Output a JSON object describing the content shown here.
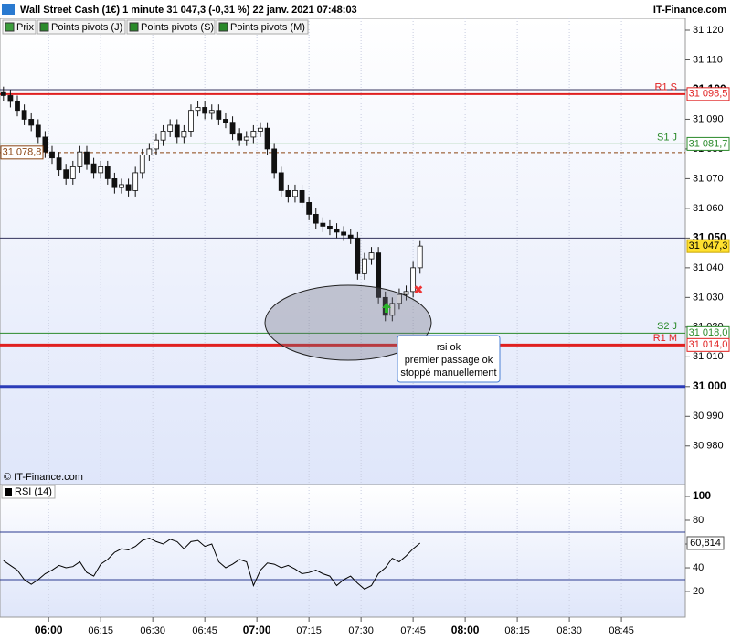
{
  "header": {
    "title": "Wall Street Cash (1€) 1 minute 31 047,3 (-0,31 %) 22 janv. 2021 07:48:03",
    "site": "IT-Finance.com"
  },
  "toolbar": [
    "Prix",
    "Points pivots (J)",
    "Points pivots (S)",
    "Points pivots (M)"
  ],
  "watermark": "© IT-Finance.com",
  "chart_data": [
    {
      "type": "candlestick",
      "x": [
        347,
        349,
        351,
        353,
        355,
        357,
        359,
        361,
        363,
        365,
        367,
        369,
        371,
        373,
        375,
        377,
        379,
        381,
        383,
        385,
        387,
        389,
        391,
        393,
        395,
        397,
        399,
        401,
        403,
        405,
        407,
        409,
        411,
        413,
        415,
        417,
        419,
        421,
        423,
        425,
        427,
        429,
        431,
        433,
        435,
        437,
        439,
        441,
        443,
        445,
        447,
        449,
        451,
        453,
        455,
        457,
        459,
        461,
        463,
        465,
        467
      ],
      "open": [
        31099,
        31098,
        31096,
        31093,
        31090,
        31088,
        31084,
        31079,
        31077,
        31073,
        31070,
        31074,
        31079,
        31075,
        31072,
        31074,
        31070,
        31067,
        31068,
        31066,
        31072,
        31078,
        31080,
        31083,
        31086,
        31088,
        31084,
        31086,
        31093,
        31094,
        31092,
        31093,
        31090,
        31089,
        31085,
        31083,
        31084,
        31086,
        31087,
        31080,
        31072,
        31066,
        31064,
        31066,
        31062,
        31058,
        31055,
        31054,
        31053,
        31052,
        31051,
        31050,
        31038,
        31043,
        31045,
        31030,
        31024,
        31028,
        31031,
        31032,
        31040
      ],
      "high": [
        31101,
        31100,
        31098,
        31095,
        31092,
        31090,
        31086,
        31081,
        31079,
        31075,
        31076,
        31081,
        31081,
        31077,
        31076,
        31076,
        31072,
        31070,
        31070,
        31074,
        31080,
        31082,
        31085,
        31088,
        31090,
        31090,
        31088,
        31095,
        31096,
        31096,
        31095,
        31095,
        31092,
        31091,
        31087,
        31086,
        31088,
        31089,
        31089,
        31082,
        31074,
        31068,
        31068,
        31068,
        31064,
        31060,
        31057,
        31056,
        31055,
        31054,
        31053,
        31052,
        31045,
        31047,
        31047,
        31032,
        31030,
        31033,
        31034,
        31042,
        31049
      ],
      "low": [
        31096,
        31094,
        31091,
        31088,
        31086,
        31082,
        31077,
        31075,
        31071,
        31068,
        31068,
        31072,
        31073,
        31070,
        31070,
        31068,
        31065,
        31065,
        31064,
        31064,
        31070,
        31076,
        31078,
        31081,
        31084,
        31082,
        31082,
        31084,
        31091,
        31090,
        31090,
        31088,
        31087,
        31083,
        31081,
        31081,
        31082,
        31084,
        31078,
        31070,
        31064,
        31062,
        31062,
        31060,
        31056,
        31053,
        31052,
        31051,
        31050,
        31049,
        31048,
        31036,
        31036,
        31041,
        31028,
        31022,
        31022,
        31026,
        31029,
        31030,
        31038
      ],
      "close": [
        31098,
        31096,
        31093,
        31090,
        31088,
        31084,
        31079,
        31077,
        31073,
        31070,
        31074,
        31079,
        31075,
        31072,
        31074,
        31070,
        31067,
        31068,
        31066,
        31072,
        31078,
        31080,
        31083,
        31086,
        31088,
        31084,
        31086,
        31093,
        31094,
        31092,
        31093,
        31090,
        31089,
        31085,
        31083,
        31084,
        31086,
        31087,
        31080,
        31072,
        31066,
        31064,
        31066,
        31062,
        31058,
        31055,
        31054,
        31053,
        31052,
        31051,
        31050,
        31038,
        31043,
        31045,
        31030,
        31024,
        31028,
        31031,
        31032,
        31040,
        31047.3
      ],
      "up_color": "#ffffff",
      "down_color": "#111111",
      "xlim": [
        346,
        543.4
      ],
      "ylim": [
        30967,
        31124
      ],
      "yticks": [
        {
          "value": 31120,
          "label": "31 120"
        },
        {
          "value": 31110,
          "label": "31 110"
        },
        {
          "value": 31100,
          "label": "31 100"
        },
        {
          "value": 31090,
          "label": "31 090"
        },
        {
          "value": 31080,
          "label": "31 080"
        },
        {
          "value": 31070,
          "label": "31 070"
        },
        {
          "value": 31060,
          "label": "31 060"
        },
        {
          "value": 31050,
          "label": "31 050"
        },
        {
          "value": 31040,
          "label": "31 040"
        },
        {
          "value": 31030,
          "label": "31 030"
        },
        {
          "value": 31020,
          "label": "31 020"
        },
        {
          "value": 31010,
          "label": "31 010"
        },
        {
          "value": 31000,
          "label": "31 000"
        },
        {
          "value": 30990,
          "label": "30 990"
        },
        {
          "value": 30980,
          "label": "30 980"
        }
      ],
      "levels": [
        {
          "value": 31100,
          "color": "#33335c",
          "width": 1
        },
        {
          "value": 31050,
          "color": "#33335c",
          "width": 1
        },
        {
          "value": 31000,
          "color": "#2b3cb8",
          "width": 3
        },
        {
          "name": "R1 S",
          "value": 31098.5,
          "value_label": "31 098,5",
          "color": "#e02020",
          "width": 2
        },
        {
          "name": "S1 J",
          "value": 31081.7,
          "value_label": "31 081,7",
          "color": "#2a8a2a",
          "width": 1
        },
        {
          "name": "S2 J",
          "value": 31018.0,
          "value_label": "31 018,0",
          "color": "#2a8a2a",
          "width": 1
        },
        {
          "name": "R1 M",
          "value": 31014.0,
          "value_label": "31 014,0",
          "color": "#e02020",
          "width": 3
        }
      ],
      "marker": {
        "value": 31078.8,
        "value_label": "31 078,8",
        "color": "#8b4513"
      },
      "last": {
        "value": 31047.3,
        "value_label": "31 047,3"
      },
      "annotation": [
        "rsi ok",
        "premier passage ok",
        "stoppé manuellement"
      ]
    },
    {
      "type": "line",
      "title": "RSI (14)",
      "x": [
        347,
        349,
        351,
        353,
        355,
        357,
        359,
        361,
        363,
        365,
        367,
        369,
        371,
        373,
        375,
        377,
        379,
        381,
        383,
        385,
        387,
        389,
        391,
        393,
        395,
        397,
        399,
        401,
        403,
        405,
        407,
        409,
        411,
        413,
        415,
        417,
        419,
        421,
        423,
        425,
        427,
        429,
        431,
        433,
        435,
        437,
        439,
        441,
        443,
        445,
        447,
        449,
        451,
        453,
        455,
        457,
        459,
        461,
        463,
        465,
        467
      ],
      "values": [
        46,
        42,
        38,
        30,
        26,
        30,
        35,
        38,
        42,
        40,
        41,
        45,
        36,
        33,
        43,
        47,
        53,
        56,
        55,
        58,
        63,
        65,
        62,
        60,
        64,
        62,
        56,
        62,
        63,
        58,
        60,
        45,
        40,
        43,
        47,
        45,
        25,
        38,
        44,
        43,
        40,
        42,
        39,
        35,
        36,
        38,
        35,
        33,
        25,
        30,
        33,
        27,
        22,
        25,
        35,
        40,
        48,
        45,
        50,
        56,
        60.814
      ],
      "value_label": "60,814",
      "color": "#000000",
      "xlim": [
        346,
        543.4
      ],
      "ylim": [
        -1.5,
        110
      ],
      "yticks": [
        100,
        80,
        60,
        40,
        20
      ],
      "levels": [
        70,
        30
      ],
      "xticks": [
        {
          "value": 360,
          "label": "06:00"
        },
        {
          "value": 375,
          "label": "06:15"
        },
        {
          "value": 390,
          "label": "06:30"
        },
        {
          "value": 405,
          "label": "06:45"
        },
        {
          "value": 420,
          "label": "07:00"
        },
        {
          "value": 435,
          "label": "07:15"
        },
        {
          "value": 450,
          "label": "07:30"
        },
        {
          "value": 465,
          "label": "07:45"
        },
        {
          "value": 480,
          "label": "08:00"
        },
        {
          "value": 495,
          "label": "08:15"
        },
        {
          "value": 510,
          "label": "08:30"
        },
        {
          "value": 525,
          "label": "08:45"
        }
      ]
    }
  ]
}
